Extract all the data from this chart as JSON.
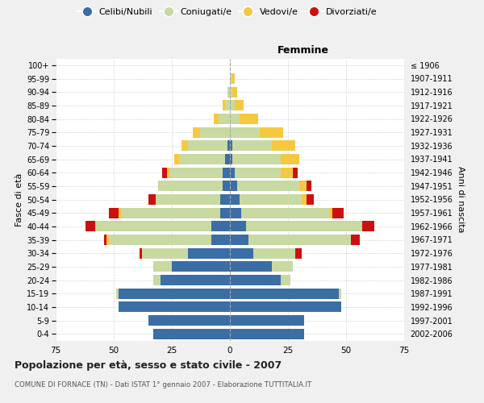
{
  "age_groups": [
    "0-4",
    "5-9",
    "10-14",
    "15-19",
    "20-24",
    "25-29",
    "30-34",
    "35-39",
    "40-44",
    "45-49",
    "50-54",
    "55-59",
    "60-64",
    "65-69",
    "70-74",
    "75-79",
    "80-84",
    "85-89",
    "90-94",
    "95-99",
    "100+"
  ],
  "birth_years": [
    "2002-2006",
    "1997-2001",
    "1992-1996",
    "1987-1991",
    "1982-1986",
    "1977-1981",
    "1972-1976",
    "1967-1971",
    "1962-1966",
    "1957-1961",
    "1952-1956",
    "1947-1951",
    "1942-1946",
    "1937-1941",
    "1932-1936",
    "1927-1931",
    "1922-1926",
    "1917-1921",
    "1912-1916",
    "1907-1911",
    "≤ 1906"
  ],
  "males": {
    "celibi": [
      33,
      35,
      48,
      48,
      30,
      25,
      18,
      8,
      8,
      4,
      4,
      3,
      3,
      2,
      1,
      0,
      0,
      0,
      0,
      0,
      0
    ],
    "coniugati": [
      0,
      0,
      0,
      1,
      3,
      8,
      20,
      44,
      50,
      43,
      28,
      28,
      23,
      20,
      17,
      13,
      5,
      2,
      1,
      0,
      0
    ],
    "vedovi": [
      0,
      0,
      0,
      0,
      0,
      0,
      0,
      1,
      0,
      1,
      0,
      0,
      1,
      2,
      3,
      3,
      2,
      1,
      0,
      0,
      0
    ],
    "divorziati": [
      0,
      0,
      0,
      0,
      0,
      0,
      1,
      1,
      4,
      4,
      3,
      0,
      2,
      0,
      0,
      0,
      0,
      0,
      0,
      0,
      0
    ]
  },
  "females": {
    "nubili": [
      32,
      32,
      48,
      47,
      22,
      18,
      10,
      8,
      7,
      5,
      4,
      3,
      2,
      1,
      1,
      0,
      0,
      0,
      0,
      0,
      0
    ],
    "coniugate": [
      0,
      0,
      0,
      1,
      4,
      9,
      18,
      44,
      50,
      38,
      27,
      27,
      20,
      21,
      17,
      13,
      4,
      2,
      1,
      1,
      0
    ],
    "vedove": [
      0,
      0,
      0,
      0,
      0,
      0,
      0,
      0,
      0,
      1,
      2,
      3,
      5,
      8,
      10,
      10,
      8,
      4,
      2,
      1,
      0
    ],
    "divorziate": [
      0,
      0,
      0,
      0,
      0,
      0,
      3,
      4,
      5,
      5,
      3,
      2,
      2,
      0,
      0,
      0,
      0,
      0,
      0,
      0,
      0
    ]
  },
  "color_celibi": "#3a6ea5",
  "color_coniugati": "#c8d9a2",
  "color_vedovi": "#f5c842",
  "color_divorziati": "#cc1010",
  "xlim": 75,
  "title": "Popolazione per età, sesso e stato civile - 2007",
  "subtitle": "COMUNE DI FORNACE (TN) - Dati ISTAT 1° gennaio 2007 - Elaborazione TUTTITALIA.IT",
  "ylabel_left": "Fasce di età",
  "ylabel_right": "Anni di nascita",
  "xlabel_femmine": "Femmine",
  "bg_color": "#f0f0f0",
  "plot_bg_color": "#ffffff"
}
